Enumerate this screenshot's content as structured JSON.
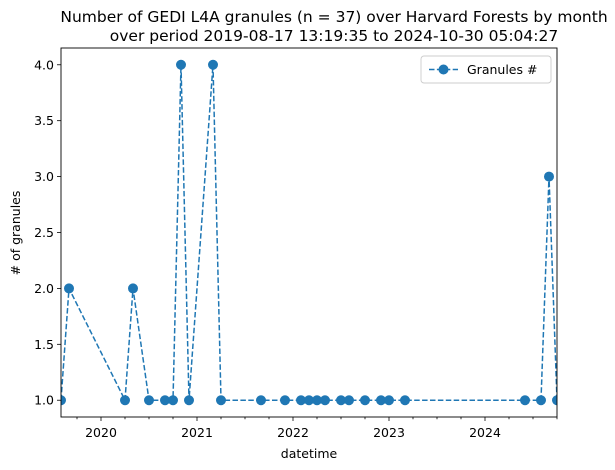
{
  "chart_data": {
    "type": "line",
    "title_lines": [
      "Number of GEDI L4A granules (n = 37) over Harvard Forests by month",
      "over period 2019-08-17 13:19:35 to 2024-10-30 05:04:27"
    ],
    "xlabel": "datetime",
    "ylabel": "# of granules",
    "xlim": [
      "2019-08",
      "2024-10"
    ],
    "ylim": [
      0.85,
      4.15
    ],
    "x_ticks": [
      "2020",
      "2021",
      "2022",
      "2023",
      "2024"
    ],
    "y_ticks": [
      "1.0",
      "1.5",
      "2.0",
      "2.5",
      "3.0",
      "3.5",
      "4.0"
    ],
    "line_style": "dashed",
    "marker": "circle",
    "grid": false,
    "legend_position": "top-right",
    "series": [
      {
        "name": "Granules #",
        "color": "#1f77b4",
        "x": [
          "2019-08",
          "2019-09",
          "2020-04",
          "2020-05",
          "2020-07",
          "2020-09",
          "2020-10",
          "2020-11",
          "2020-12",
          "2021-03",
          "2021-04",
          "2021-09",
          "2021-12",
          "2022-02",
          "2022-03",
          "2022-04",
          "2022-05",
          "2022-07",
          "2022-08",
          "2022-10",
          "2022-12",
          "2023-01",
          "2023-03",
          "2024-06",
          "2024-08",
          "2024-09",
          "2024-10"
        ],
        "y": [
          1,
          2,
          1,
          2,
          1,
          1,
          1,
          4,
          1,
          4,
          1,
          1,
          1,
          1,
          1,
          1,
          1,
          1,
          1,
          1,
          1,
          1,
          1,
          1,
          1,
          3,
          1
        ]
      }
    ]
  }
}
